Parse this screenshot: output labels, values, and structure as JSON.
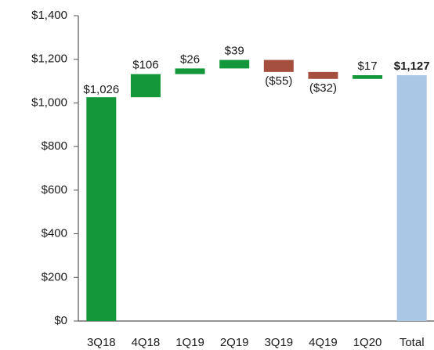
{
  "chart_data": {
    "type": "waterfall",
    "categories": [
      "3Q18",
      "4Q18",
      "1Q19",
      "2Q19",
      "3Q19",
      "4Q19",
      "1Q20",
      "Total"
    ],
    "values": [
      1026,
      106,
      26,
      39,
      -55,
      -32,
      17,
      1127
    ],
    "value_labels": [
      "$1,026",
      "$106",
      "$26",
      "$39",
      "($55)",
      "($32)",
      "$17",
      "$1,127"
    ],
    "increase_color": "#13973a",
    "decrease_color": "#a5503f",
    "total_color": "#abc7e6",
    "ylim": [
      0,
      1400
    ],
    "yticks": [
      {
        "value": 0,
        "label": "$0"
      },
      {
        "value": 200,
        "label": "$200"
      },
      {
        "value": 400,
        "label": "$400"
      },
      {
        "value": 600,
        "label": "$600"
      },
      {
        "value": 800,
        "label": "$800"
      },
      {
        "value": 1000,
        "label": "$1,000"
      },
      {
        "value": 1200,
        "label": "$1,200"
      },
      {
        "value": 1400,
        "label": "$1,400"
      }
    ]
  }
}
